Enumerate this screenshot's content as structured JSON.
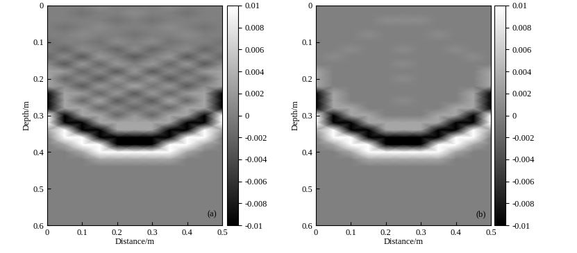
{
  "chart_data": [
    {
      "type": "heatmap",
      "annotation": "(a)",
      "xlabel": "Distance/m",
      "ylabel": "Depth/m",
      "xlim": [
        0,
        0.5
      ],
      "ylim": [
        0.6,
        0
      ],
      "xticks": [
        0,
        0.1,
        0.2,
        0.3,
        0.4,
        0.5
      ],
      "yticks": [
        0,
        0.1,
        0.2,
        0.3,
        0.4,
        0.5,
        0.6
      ],
      "color": "gray",
      "colorbar_range": [
        -0.01,
        0.01
      ],
      "colorbar_ticks": [
        0.01,
        0.008,
        0.006,
        0.004,
        0.002,
        0,
        -0.002,
        -0.004,
        -0.006,
        -0.008,
        -0.01
      ],
      "x": [
        0,
        0.05,
        0.1,
        0.15,
        0.2,
        0.25,
        0.3,
        0.35,
        0.4,
        0.45,
        0.5
      ],
      "y": [
        0,
        0.02,
        0.04,
        0.06,
        0.08,
        0.1,
        0.12,
        0.14,
        0.16,
        0.18,
        0.2,
        0.22,
        0.24,
        0.26,
        0.28,
        0.3,
        0.32,
        0.34,
        0.36,
        0.38,
        0.4,
        0.42,
        0.44,
        0.46,
        0.48,
        0.5,
        0.52,
        0.54,
        0.56,
        0.58,
        0.6
      ],
      "cells": [
        [
          0,
          0,
          0,
          0.001,
          0,
          0,
          0,
          0.001,
          0,
          0,
          0
        ],
        [
          0,
          0,
          -0.001,
          0,
          0,
          0.001,
          0,
          0,
          -0.001,
          0,
          0
        ],
        [
          0,
          0,
          0,
          0,
          -0.001,
          0,
          -0.001,
          0,
          0,
          0,
          0
        ],
        [
          0,
          -0.001,
          0,
          0.001,
          0,
          0,
          0,
          0.001,
          0,
          -0.001,
          0
        ],
        [
          0,
          0,
          0.001,
          0,
          0,
          -0.001,
          0,
          0,
          0.001,
          0,
          0
        ],
        [
          -0.001,
          0,
          0,
          -0.001,
          0.001,
          0,
          0.001,
          -0.001,
          0,
          0,
          -0.001
        ],
        [
          0,
          -0.002,
          0.001,
          0,
          -0.002,
          0.001,
          -0.002,
          0,
          0.001,
          -0.002,
          0
        ],
        [
          -0.002,
          0.001,
          -0.003,
          0.002,
          0,
          -0.003,
          0,
          0.002,
          -0.003,
          0.001,
          -0.002
        ],
        [
          0.001,
          -0.003,
          0.002,
          -0.002,
          0.002,
          0,
          0.002,
          -0.002,
          0.002,
          -0.003,
          0.001
        ],
        [
          0.003,
          0.002,
          -0.002,
          0.001,
          -0.003,
          0.002,
          -0.003,
          0.001,
          -0.002,
          0.002,
          0.003
        ],
        [
          0.003,
          -0.002,
          0.001,
          -0.003,
          0.002,
          -0.002,
          0.002,
          -0.003,
          0.001,
          -0.002,
          0.003
        ],
        [
          0.003,
          0.001,
          -0.003,
          0.002,
          -0.001,
          0.003,
          -0.001,
          0.002,
          -0.003,
          0.001,
          0.003
        ],
        [
          -0.01,
          0.003,
          0.002,
          -0.002,
          0.002,
          -0.003,
          0.002,
          -0.002,
          0.002,
          0.003,
          -0.01
        ],
        [
          -0.01,
          0.003,
          -0.002,
          0.003,
          -0.003,
          0.001,
          -0.003,
          0.003,
          -0.002,
          0.003,
          -0.01
        ],
        [
          -0.01,
          0.003,
          0.003,
          -0.002,
          0.001,
          -0.002,
          0.001,
          -0.002,
          0.003,
          0.003,
          -0.01
        ],
        [
          0.01,
          -0.01,
          0.003,
          0.003,
          -0.002,
          0.002,
          -0.002,
          0.003,
          0.003,
          -0.01,
          0.01
        ],
        [
          0.01,
          -0.01,
          -0.01,
          0.003,
          0.003,
          0.003,
          0.003,
          0.003,
          -0.01,
          -0.01,
          0.01
        ],
        [
          0.003,
          0.01,
          -0.01,
          -0.01,
          0.003,
          0.003,
          0.003,
          -0.01,
          -0.01,
          0.01,
          0.003
        ],
        [
          0,
          0.01,
          0.01,
          -0.01,
          -0.01,
          -0.01,
          -0.01,
          -0.01,
          0.01,
          0.01,
          0
        ],
        [
          0,
          0.003,
          0.01,
          0.01,
          -0.01,
          -0.01,
          -0.01,
          0.01,
          0.01,
          0.003,
          0
        ],
        [
          0,
          0,
          0.003,
          0.01,
          0.01,
          0.01,
          0.01,
          0.01,
          0.003,
          0,
          0
        ],
        [
          0,
          0,
          0,
          0.003,
          0.003,
          0.003,
          0.003,
          0.003,
          0,
          0,
          0
        ],
        [
          0,
          0,
          0,
          0,
          0,
          0,
          0,
          0,
          0,
          0,
          0
        ],
        [
          0,
          0,
          0,
          0,
          0,
          0,
          0,
          0,
          0,
          0,
          0
        ],
        [
          0,
          0,
          0,
          0,
          0,
          0,
          0,
          0,
          0,
          0,
          0
        ],
        [
          0,
          0,
          0,
          0,
          0,
          0,
          0,
          0,
          0,
          0,
          0
        ],
        [
          0,
          0,
          0,
          0,
          0,
          0,
          0,
          0,
          0,
          0,
          0
        ],
        [
          0,
          0,
          0,
          0,
          0,
          0,
          0,
          0,
          0,
          0,
          0
        ],
        [
          0,
          0,
          0,
          0,
          0,
          0,
          0,
          0,
          0,
          0,
          0
        ],
        [
          0,
          0,
          0,
          0,
          0,
          0,
          0,
          0,
          0,
          0,
          0
        ],
        [
          0,
          0,
          0,
          0,
          0,
          0,
          0,
          0,
          0,
          0,
          0
        ]
      ]
    },
    {
      "type": "heatmap",
      "annotation": "(b)",
      "xlabel": "Distance/m",
      "ylabel": "Depth/m",
      "xlim": [
        0,
        0.5
      ],
      "ylim": [
        0.6,
        0
      ],
      "xticks": [
        0,
        0.1,
        0.2,
        0.3,
        0.4,
        0.5
      ],
      "yticks": [
        0,
        0.1,
        0.2,
        0.3,
        0.4,
        0.5,
        0.6
      ],
      "color": "gray",
      "colorbar_range": [
        -0.01,
        0.01
      ],
      "colorbar_ticks": [
        0.01,
        0.008,
        0.006,
        0.004,
        0.002,
        0,
        -0.002,
        -0.004,
        -0.006,
        -0.008,
        -0.01
      ],
      "x": [
        0,
        0.05,
        0.1,
        0.15,
        0.2,
        0.25,
        0.3,
        0.35,
        0.4,
        0.45,
        0.5
      ],
      "y": [
        0,
        0.02,
        0.04,
        0.06,
        0.08,
        0.1,
        0.12,
        0.14,
        0.16,
        0.18,
        0.2,
        0.22,
        0.24,
        0.26,
        0.28,
        0.3,
        0.32,
        0.34,
        0.36,
        0.38,
        0.4,
        0.42,
        0.44,
        0.46,
        0.48,
        0.5,
        0.52,
        0.54,
        0.56,
        0.58,
        0.6
      ],
      "cells": [
        [
          0,
          0,
          0,
          0,
          0,
          0,
          0,
          0,
          0,
          0,
          0
        ],
        [
          0,
          0,
          0,
          0,
          0,
          0,
          0,
          0,
          0,
          0,
          0
        ],
        [
          0,
          0,
          0,
          0,
          0.001,
          0.001,
          0.001,
          0,
          0,
          0,
          0
        ],
        [
          0,
          0,
          0,
          0,
          0,
          0,
          0,
          0,
          0,
          0,
          0
        ],
        [
          0,
          0,
          0,
          0.001,
          0,
          0,
          0,
          0.001,
          0,
          0,
          0
        ],
        [
          0,
          0,
          0,
          0,
          0,
          0,
          0,
          0,
          0,
          0,
          0
        ],
        [
          0,
          0,
          0.001,
          0,
          0,
          0.001,
          0,
          0,
          0.001,
          0,
          0
        ],
        [
          0,
          0.001,
          0,
          0,
          0,
          0,
          0,
          0,
          0,
          0.001,
          0
        ],
        [
          0,
          0,
          0,
          0,
          0,
          0.001,
          0,
          0,
          0,
          0,
          0
        ],
        [
          0.003,
          0,
          0,
          0,
          0,
          0,
          0,
          0,
          0,
          0,
          0.003
        ],
        [
          0.003,
          0,
          0,
          0,
          0,
          0.001,
          0,
          0,
          0,
          0,
          0.003
        ],
        [
          0.003,
          0,
          0,
          0,
          0,
          0,
          0,
          0,
          0,
          0,
          0.003
        ],
        [
          -0.01,
          0.003,
          0,
          0,
          0,
          0,
          0,
          0,
          0,
          0.003,
          -0.01
        ],
        [
          -0.01,
          0.003,
          0,
          0,
          0,
          0.001,
          0,
          0,
          0,
          0.003,
          -0.01
        ],
        [
          -0.01,
          0.003,
          0.003,
          0,
          0,
          0,
          0,
          0,
          0.003,
          0.003,
          -0.01
        ],
        [
          0.01,
          -0.01,
          0.003,
          0.003,
          0,
          0,
          0,
          0.003,
          0.003,
          -0.01,
          0.01
        ],
        [
          0.01,
          -0.01,
          -0.01,
          0.003,
          0.003,
          0.003,
          0.003,
          0.003,
          -0.01,
          -0.01,
          0.01
        ],
        [
          0.003,
          0.01,
          -0.01,
          -0.01,
          0.003,
          0.003,
          0.003,
          -0.01,
          -0.01,
          0.01,
          0.003
        ],
        [
          0,
          0.01,
          0.01,
          -0.01,
          -0.01,
          -0.01,
          -0.01,
          -0.01,
          0.01,
          0.01,
          0
        ],
        [
          0,
          0.003,
          0.01,
          0.01,
          -0.01,
          -0.01,
          -0.01,
          0.01,
          0.01,
          0.003,
          0
        ],
        [
          0,
          0,
          0.003,
          0.01,
          0.01,
          0.01,
          0.01,
          0.01,
          0.003,
          0,
          0
        ],
        [
          0,
          0,
          0,
          0.003,
          0.003,
          0.003,
          0.003,
          0.003,
          0,
          0,
          0
        ],
        [
          0,
          0,
          0,
          0,
          0,
          0,
          0,
          0,
          0,
          0,
          0
        ],
        [
          0,
          0,
          0,
          0,
          0,
          0,
          0,
          0,
          0,
          0,
          0
        ],
        [
          0,
          0,
          0,
          0,
          0,
          0,
          0,
          0,
          0,
          0,
          0
        ],
        [
          0,
          0,
          0,
          0,
          0,
          0,
          0,
          0,
          0,
          0,
          0
        ],
        [
          0,
          0,
          0,
          0,
          0,
          0,
          0,
          0,
          0,
          0,
          0
        ],
        [
          0,
          0,
          0,
          0,
          0,
          0,
          0,
          0,
          0,
          0,
          0
        ],
        [
          0,
          0,
          0,
          0,
          0,
          0,
          0,
          0,
          0,
          0,
          0
        ],
        [
          0,
          0,
          0,
          0,
          0,
          0,
          0,
          0,
          0,
          0,
          0
        ],
        [
          0,
          0,
          0,
          0,
          0,
          0,
          0,
          0,
          0,
          0,
          0
        ]
      ]
    }
  ]
}
